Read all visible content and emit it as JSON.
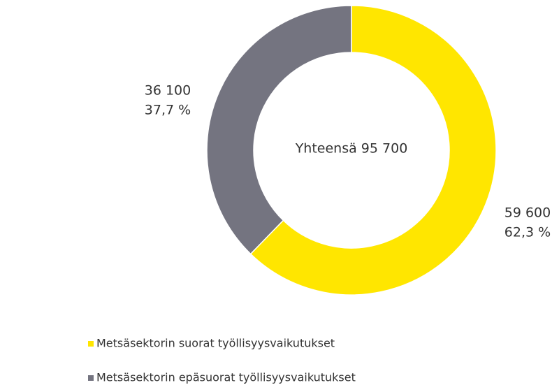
{
  "chart_data": {
    "type": "donut",
    "categories": [
      "Metsäsektorin suorat työllisyysvaikutukset",
      "Metsäsektorin epäsuorat työllisyysvaikutukset"
    ],
    "values": [
      59600,
      36100
    ],
    "value_labels": [
      "59 600",
      "36 100"
    ],
    "percentages": [
      62.3,
      37.7
    ],
    "percentage_labels": [
      "62,3 %",
      "37,7 %"
    ],
    "colors": [
      "#ffe600",
      "#747480"
    ],
    "center_label": "Yhteensä 95 700",
    "legend": "bottom-left"
  }
}
